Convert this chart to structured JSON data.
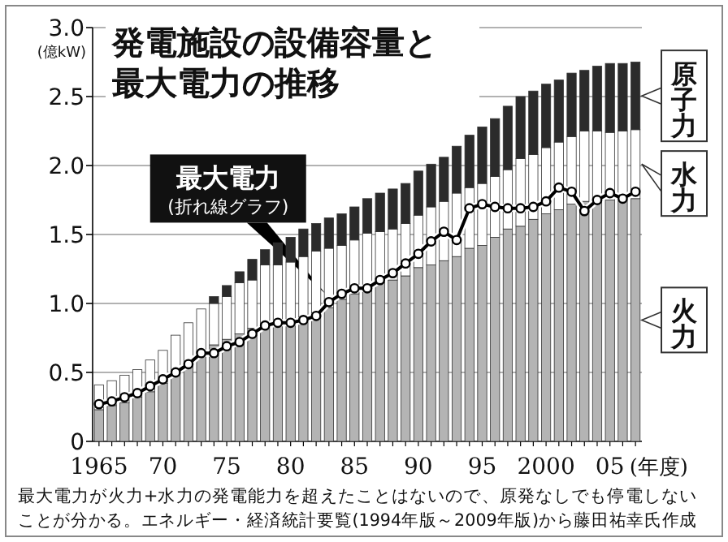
{
  "chart_data": {
    "type": "bar",
    "stacked": true,
    "title": "発電施設の設備容量と最大電力の推移",
    "ylabel": "(億kW)",
    "xlabel": "(年度)",
    "categories": [
      "1965",
      null,
      null,
      null,
      null,
      "70",
      null,
      null,
      null,
      null,
      "75",
      null,
      null,
      null,
      null,
      "80",
      null,
      null,
      null,
      null,
      "85",
      null,
      null,
      null,
      null,
      "90",
      null,
      null,
      null,
      null,
      "95",
      null,
      null,
      null,
      null,
      "2000",
      null,
      null,
      null,
      null,
      "05",
      null,
      null
    ],
    "series": [
      {
        "name": "火力",
        "color": "#b4b4b4",
        "values": [
          0.23,
          0.26,
          0.28,
          0.32,
          0.36,
          0.42,
          0.5,
          0.56,
          0.64,
          0.7,
          0.74,
          0.78,
          0.82,
          0.85,
          0.86,
          0.88,
          0.9,
          0.93,
          0.97,
          1.03,
          1.07,
          1.09,
          1.15,
          1.17,
          1.2,
          1.26,
          1.28,
          1.31,
          1.34,
          1.4,
          1.42,
          1.48,
          1.54,
          1.56,
          1.61,
          1.65,
          1.68,
          1.72,
          1.74,
          1.76,
          1.75,
          1.75,
          1.76
        ]
      },
      {
        "name": "水力",
        "color": "#ffffff",
        "values": [
          0.18,
          0.18,
          0.2,
          0.2,
          0.23,
          0.24,
          0.27,
          0.3,
          0.32,
          0.3,
          0.31,
          0.37,
          0.35,
          0.43,
          0.42,
          0.42,
          0.44,
          0.45,
          0.43,
          0.39,
          0.39,
          0.42,
          0.37,
          0.37,
          0.38,
          0.38,
          0.42,
          0.43,
          0.46,
          0.44,
          0.45,
          0.44,
          0.43,
          0.49,
          0.47,
          0.48,
          0.49,
          0.49,
          0.51,
          0.49,
          0.49,
          0.5,
          0.5
        ]
      },
      {
        "name": "原子力",
        "color": "#2b2b2b",
        "values": [
          0,
          0,
          0,
          0,
          0,
          0,
          0,
          0,
          0,
          0.05,
          0.08,
          0.08,
          0.15,
          0.11,
          0.16,
          0.18,
          0.2,
          0.2,
          0.22,
          0.23,
          0.24,
          0.25,
          0.28,
          0.29,
          0.29,
          0.32,
          0.31,
          0.32,
          0.34,
          0.38,
          0.41,
          0.42,
          0.46,
          0.45,
          0.46,
          0.46,
          0.45,
          0.46,
          0.44,
          0.47,
          0.5,
          0.49,
          0.49
        ]
      },
      {
        "name": "最大電力",
        "type": "line",
        "color": "#000000",
        "marker": "circle",
        "values": [
          0.27,
          0.29,
          0.32,
          0.35,
          0.4,
          0.45,
          0.5,
          0.56,
          0.64,
          0.64,
          0.69,
          0.72,
          0.78,
          0.84,
          0.86,
          0.86,
          0.88,
          0.91,
          1.01,
          1.07,
          1.11,
          1.11,
          1.17,
          1.22,
          1.29,
          1.36,
          1.45,
          1.52,
          1.46,
          1.69,
          1.72,
          1.7,
          1.69,
          1.69,
          1.7,
          1.74,
          1.84,
          1.81,
          1.67,
          1.75,
          1.8,
          1.76,
          1.81
        ]
      }
    ],
    "ylim": [
      0,
      3
    ],
    "yticks": [
      {
        "value": 0,
        "label": "0"
      },
      {
        "value": 0.5,
        "label": "0.5"
      },
      {
        "value": 1,
        "label": "1.0"
      },
      {
        "value": 1.5,
        "label": "1.5"
      },
      {
        "value": 2,
        "label": "2.0"
      },
      {
        "value": 2.5,
        "label": "2.5"
      },
      {
        "value": 3,
        "label": "3.0"
      }
    ],
    "grid": "y",
    "legend": "right",
    "annotations": [
      "(折れ線グラフ)",
      "最大電力が火力+水力の発電能力を超えたことはないので、原発なしでも停電しないことが分かる。エネルギー・経済統計要覧(1994年版～2009年版)から藤田祐幸氏作成"
    ]
  }
}
